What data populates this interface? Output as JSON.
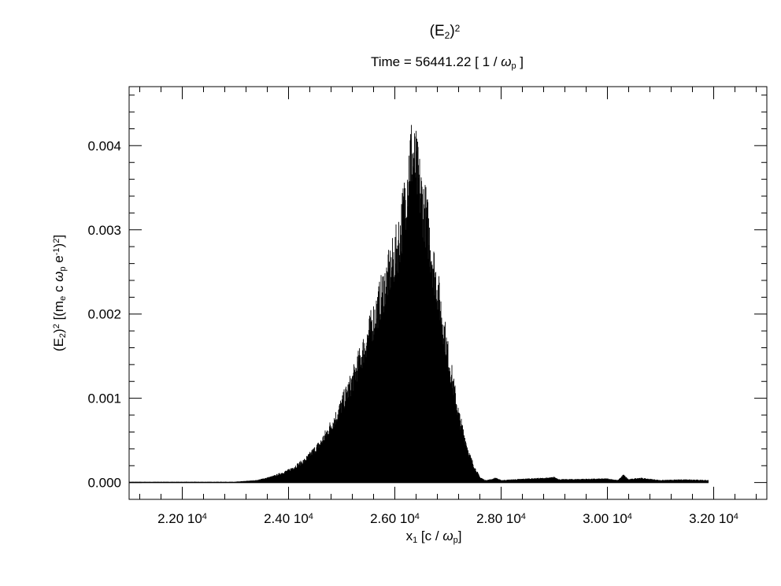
{
  "chart_data": {
    "type": "area",
    "title": {
      "base": "(E",
      "sub": "2",
      "close": ")",
      "sup": "2"
    },
    "subtitle": {
      "prefix": "Time = 56441.22 [ 1 / ",
      "omega": "ω",
      "sub": "p",
      "suffix": " ]"
    },
    "xlabel": {
      "x": "x",
      "sub": "1",
      "rest": " [c / ",
      "omega": "ω",
      "sub2": "p",
      "close": "]"
    },
    "ylabel": {
      "p1": "(E",
      "s1": "2",
      "p2": ")",
      "sup1": "2",
      "p3": " [(m",
      "s2": "e",
      "p4": " c ",
      "omega": "ω",
      "s3": "p",
      "p5": " e",
      "sup2": "-1",
      "p6": ")",
      "sup3": "2",
      "p7": "]"
    },
    "xlim": [
      21000,
      33000
    ],
    "ylim": [
      -0.0002,
      0.0047
    ],
    "x_ticks": [
      {
        "value": 22000,
        "mantissa": "2.20 10",
        "exp": "4"
      },
      {
        "value": 24000,
        "mantissa": "2.40 10",
        "exp": "4"
      },
      {
        "value": 26000,
        "mantissa": "2.60 10",
        "exp": "4"
      },
      {
        "value": 28000,
        "mantissa": "2.80 10",
        "exp": "4"
      },
      {
        "value": 30000,
        "mantissa": "3.00 10",
        "exp": "4"
      },
      {
        "value": 32000,
        "mantissa": "3.20 10",
        "exp": "4"
      }
    ],
    "y_ticks": [
      {
        "value": 0.0,
        "label": "0.000"
      },
      {
        "value": 0.001,
        "label": "0.001"
      },
      {
        "value": 0.002,
        "label": "0.002"
      },
      {
        "value": 0.003,
        "label": "0.003"
      },
      {
        "value": 0.004,
        "label": "0.004"
      }
    ],
    "x_minor_step": 400,
    "y_minor_step": 0.0002,
    "data_range": [
      21000,
      31900
    ],
    "envelope": {
      "x": [
        21000,
        22000,
        23000,
        23400,
        23700,
        24000,
        24300,
        24600,
        24900,
        25200,
        25500,
        25800,
        26000,
        26100,
        26200,
        26300,
        26400,
        26500,
        26600,
        26700,
        26800,
        27000,
        27200,
        27400,
        27500,
        27600,
        27700,
        27800,
        27900,
        28000,
        28500,
        28900,
        29000,
        29100,
        30000,
        30200,
        30300,
        30400,
        30600,
        31000,
        31500,
        31900
      ],
      "y": [
        1e-05,
        1e-05,
        1e-05,
        3e-05,
        8e-05,
        0.00016,
        0.00029,
        0.00052,
        0.00088,
        0.00135,
        0.00195,
        0.0026,
        0.003,
        0.0033,
        0.0038,
        0.0044,
        0.0042,
        0.0038,
        0.0035,
        0.003,
        0.0026,
        0.0017,
        0.0009,
        0.00037,
        0.0002,
        7e-05,
        3e-05,
        4e-05,
        6e-05,
        3e-05,
        5e-05,
        6e-05,
        7e-05,
        4e-05,
        5e-05,
        3e-05,
        0.0001,
        4e-05,
        6e-05,
        3e-05,
        4e-05,
        3e-05
      ]
    },
    "grid": false,
    "legend": "none",
    "color": "#000000"
  }
}
